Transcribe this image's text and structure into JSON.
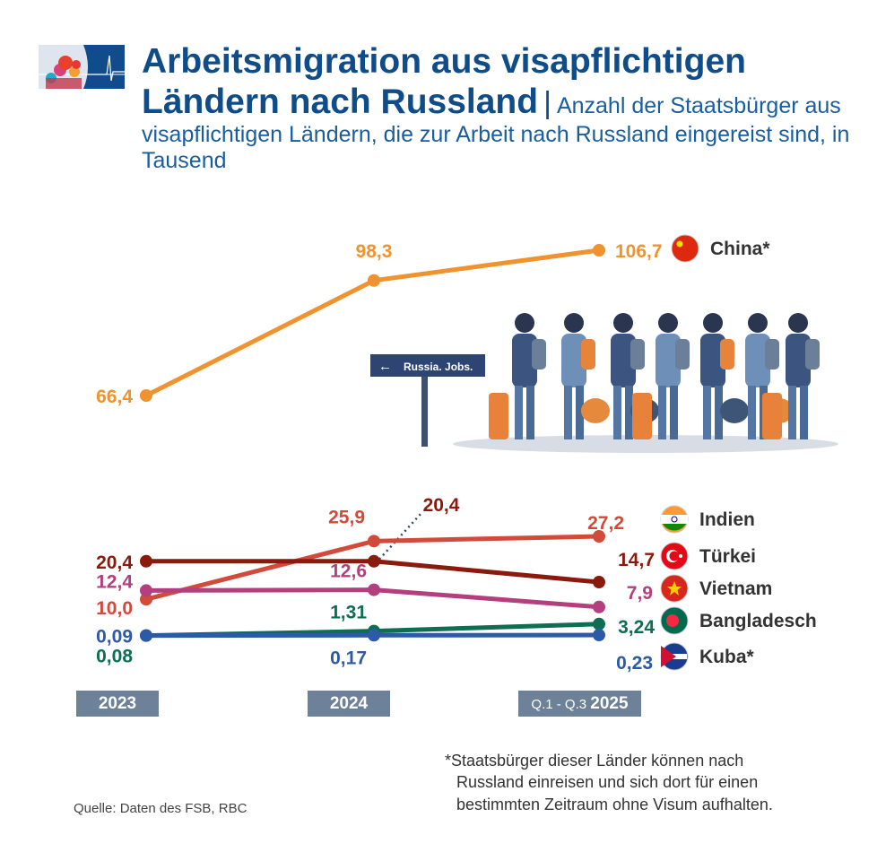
{
  "header": {
    "title": "Arbeitsmigration aus visapflichtigen Ländern nach Russland",
    "title_line1": "Arbeitsmigration aus visapflichtigen",
    "title_line2": "Ländern nach Russland",
    "separator": "|",
    "subtitle": "Anzahl der Staatsbürger aus visapflichtigen Ländern, die zur Arbeit nach Russland eingereist sind, in Tausend"
  },
  "illustration": {
    "sign_text": "Russia. Jobs."
  },
  "chart_data": {
    "type": "line",
    "categories": [
      "2023",
      "2024",
      "Q.1 - Q.3 2025"
    ],
    "category_labels": [
      {
        "prefix": "",
        "year": "2023"
      },
      {
        "prefix": "",
        "year": "2024"
      },
      {
        "prefix": "Q.1 - Q.3 ",
        "year": "2025"
      }
    ],
    "axis_break": true,
    "grid": false,
    "legend": "right",
    "series": [
      {
        "name": "China*",
        "values": [
          66.4,
          98.3,
          106.7
        ],
        "labels": [
          "66,4",
          "98,3",
          "106,7"
        ],
        "color": "#f0922e",
        "flag": "china-flag"
      },
      {
        "name": "Indien",
        "values": [
          10.0,
          25.9,
          27.2
        ],
        "labels": [
          "10,0",
          "25,9",
          "27,2"
        ],
        "color": "#d24a3a",
        "flag": "india-flag"
      },
      {
        "name": "Türkei",
        "values": [
          20.4,
          20.4,
          14.7
        ],
        "labels": [
          "20,4",
          "20,4",
          "14,7"
        ],
        "color": "#8a1a0e",
        "flag": "turkey-flag"
      },
      {
        "name": "Vietnam",
        "values": [
          12.4,
          12.6,
          7.9
        ],
        "labels": [
          "12,4",
          "12,6",
          "7,9"
        ],
        "color": "#b33f7f",
        "flag": "vietnam-flag"
      },
      {
        "name": "Bangladesch",
        "values": [
          0.08,
          1.31,
          3.24
        ],
        "labels": [
          "0,08",
          "1,31",
          "3,24"
        ],
        "color": "#0d6e52",
        "flag": "bangladesh-flag"
      },
      {
        "name": "Kuba*",
        "values": [
          0.09,
          0.17,
          0.23
        ],
        "labels": [
          "0,09",
          "0,17",
          "0,23"
        ],
        "color": "#2d5aa6",
        "flag": "cuba-flag"
      }
    ]
  },
  "footnote": {
    "marker": "*",
    "text_lines": [
      "Staatsbürger dieser Länder können nach",
      "Russland einreisen und sich dort für einen",
      "bestimmten Zeitraum ohne Visum aufhalten."
    ]
  },
  "source": "Quelle: Daten des FSB, RBC"
}
